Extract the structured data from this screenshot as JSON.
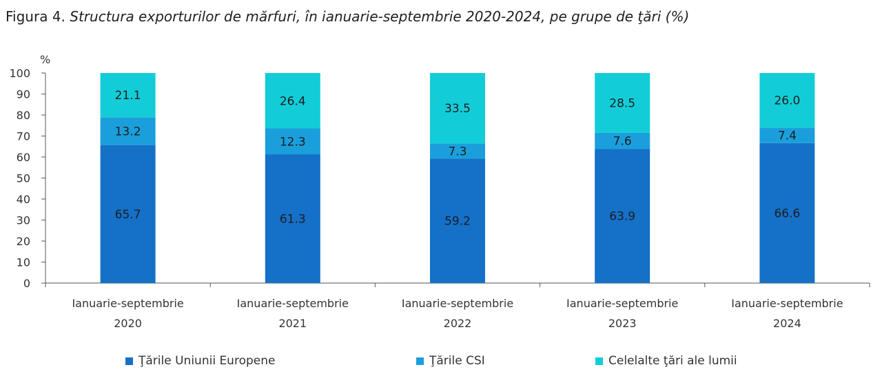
{
  "title": {
    "prefix": "Figura 4. ",
    "text": "Structura exporturilor de mărfuri, în ianuarie-septembrie 2020-2024, pe grupe de ţări (%)"
  },
  "colors": {
    "eu": "#1570c8",
    "csi": "#1a9fdc",
    "other": "#12cdd8",
    "axis": "#555555"
  },
  "chart_data": {
    "type": "bar",
    "stacked": true,
    "title": "Structura exporturilor de mărfuri, în ianuarie-septembrie 2020-2024, pe grupe de ţări (%)",
    "ylabel": "%",
    "ylim": [
      0,
      100
    ],
    "yticks": [
      0,
      10,
      20,
      30,
      40,
      50,
      60,
      70,
      80,
      90,
      100
    ],
    "categories": [
      [
        "Ianuarie-septembrie",
        "2020"
      ],
      [
        "Ianuarie-septembrie",
        "2021"
      ],
      [
        "Ianuarie-septembrie",
        "2022"
      ],
      [
        "Ianuarie-septembrie",
        "2023"
      ],
      [
        "Ianuarie-septembrie",
        "2024"
      ]
    ],
    "series": [
      {
        "name": "Ţările Uniunii Europene",
        "key": "eu",
        "values": [
          65.7,
          61.3,
          59.2,
          63.9,
          66.6
        ],
        "labels": [
          "65.7",
          "61.3",
          "59.2",
          "63.9",
          "66.6"
        ]
      },
      {
        "name": "Ţările CSI",
        "key": "csi",
        "values": [
          13.2,
          12.3,
          7.3,
          7.6,
          7.4
        ],
        "labels": [
          "13.2",
          "12.3",
          "7.3",
          "7.6",
          "7.4"
        ]
      },
      {
        "name": "Celelalte ţări ale lumii",
        "key": "other",
        "values": [
          21.1,
          26.4,
          33.5,
          28.5,
          26.0
        ],
        "labels": [
          "21.1",
          "26.4",
          "33.5",
          "28.5",
          "26.0"
        ]
      }
    ],
    "legend_position": "bottom"
  }
}
